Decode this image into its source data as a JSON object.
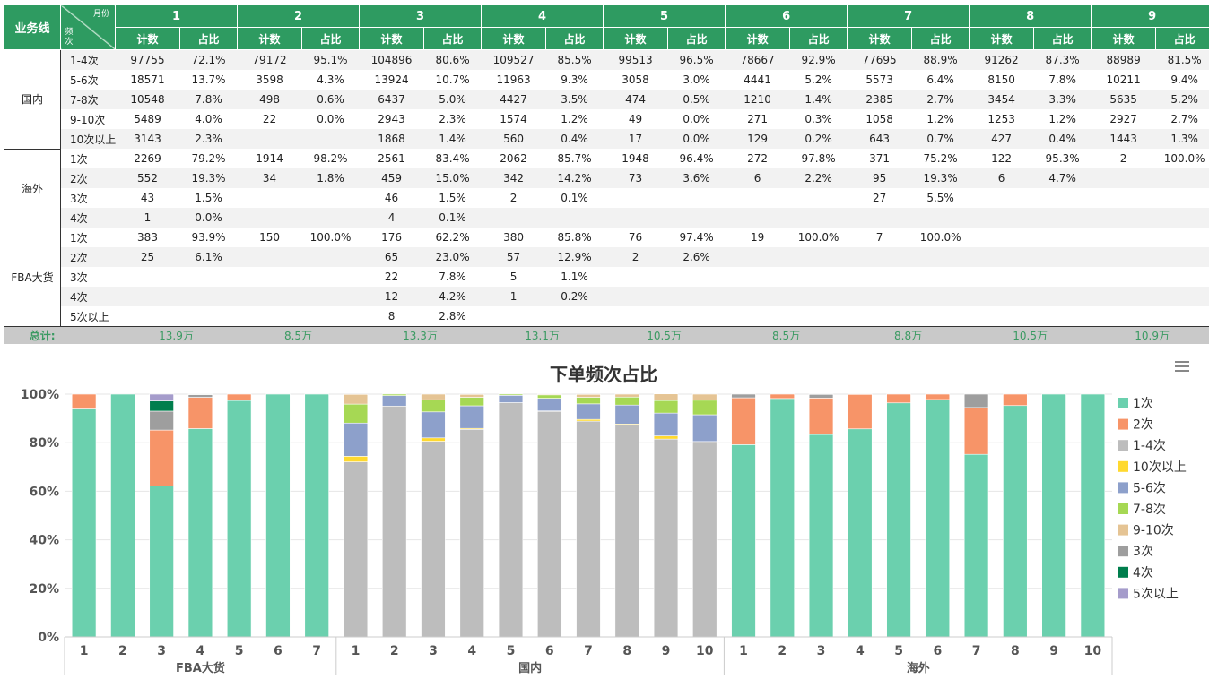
{
  "table": {
    "header": {
      "business": "业务线",
      "month": "月份",
      "freq": "频次",
      "count": "计数",
      "pct": "占比"
    },
    "months": [
      "1",
      "2",
      "3",
      "4",
      "5",
      "6",
      "7",
      "8",
      "9"
    ],
    "groups": [
      {
        "name": "国内",
        "rows": [
          {
            "freq": "1-4次",
            "cells": [
              "97755",
              "72.1%",
              "79172",
              "95.1%",
              "104896",
              "80.6%",
              "109527",
              "85.5%",
              "99513",
              "96.5%",
              "78667",
              "92.9%",
              "77695",
              "88.9%",
              "91262",
              "87.3%",
              "88989",
              "81.5%"
            ]
          },
          {
            "freq": "5-6次",
            "cells": [
              "18571",
              "13.7%",
              "3598",
              "4.3%",
              "13924",
              "10.7%",
              "11963",
              "9.3%",
              "3058",
              "3.0%",
              "4441",
              "5.2%",
              "5573",
              "6.4%",
              "8150",
              "7.8%",
              "10211",
              "9.4%"
            ]
          },
          {
            "freq": "7-8次",
            "cells": [
              "10548",
              "7.8%",
              "498",
              "0.6%",
              "6437",
              "5.0%",
              "4427",
              "3.5%",
              "474",
              "0.5%",
              "1210",
              "1.4%",
              "2385",
              "2.7%",
              "3454",
              "3.3%",
              "5635",
              "5.2%"
            ]
          },
          {
            "freq": "9-10次",
            "cells": [
              "5489",
              "4.0%",
              "22",
              "0.0%",
              "2943",
              "2.3%",
              "1574",
              "1.2%",
              "49",
              "0.0%",
              "271",
              "0.3%",
              "1058",
              "1.2%",
              "1253",
              "1.2%",
              "2927",
              "2.7%"
            ]
          },
          {
            "freq": "10次以上",
            "cells": [
              "3143",
              "2.3%",
              "",
              "",
              "1868",
              "1.4%",
              "560",
              "0.4%",
              "17",
              "0.0%",
              "129",
              "0.2%",
              "643",
              "0.7%",
              "427",
              "0.4%",
              "1443",
              "1.3%"
            ]
          }
        ]
      },
      {
        "name": "海外",
        "rows": [
          {
            "freq": "1次",
            "cells": [
              "2269",
              "79.2%",
              "1914",
              "98.2%",
              "2561",
              "83.4%",
              "2062",
              "85.7%",
              "1948",
              "96.4%",
              "272",
              "97.8%",
              "371",
              "75.2%",
              "122",
              "95.3%",
              "2",
              "100.0%"
            ]
          },
          {
            "freq": "2次",
            "cells": [
              "552",
              "19.3%",
              "34",
              "1.8%",
              "459",
              "15.0%",
              "342",
              "14.2%",
              "73",
              "3.6%",
              "6",
              "2.2%",
              "95",
              "19.3%",
              "6",
              "4.7%",
              "",
              ""
            ]
          },
          {
            "freq": "3次",
            "cells": [
              "43",
              "1.5%",
              "",
              "",
              "46",
              "1.5%",
              "2",
              "0.1%",
              "",
              "",
              "",
              "",
              "27",
              "5.5%",
              "",
              "",
              "",
              ""
            ]
          },
          {
            "freq": "4次",
            "cells": [
              "1",
              "0.0%",
              "",
              "",
              "4",
              "0.1%",
              "",
              "",
              "",
              "",
              "",
              "",
              "",
              "",
              "",
              "",
              "",
              ""
            ]
          }
        ]
      },
      {
        "name": "FBA大货",
        "rows": [
          {
            "freq": "1次",
            "cells": [
              "383",
              "93.9%",
              "150",
              "100.0%",
              "176",
              "62.2%",
              "380",
              "85.8%",
              "76",
              "97.4%",
              "19",
              "100.0%",
              "7",
              "100.0%",
              "",
              "",
              "",
              ""
            ]
          },
          {
            "freq": "2次",
            "cells": [
              "25",
              "6.1%",
              "",
              "",
              "65",
              "23.0%",
              "57",
              "12.9%",
              "2",
              "2.6%",
              "",
              "",
              "",
              "",
              "",
              "",
              "",
              ""
            ]
          },
          {
            "freq": "3次",
            "cells": [
              "",
              "",
              "",
              "",
              "22",
              "7.8%",
              "5",
              "1.1%",
              "",
              "",
              "",
              "",
              "",
              "",
              "",
              "",
              "",
              ""
            ]
          },
          {
            "freq": "4次",
            "cells": [
              "",
              "",
              "",
              "",
              "12",
              "4.2%",
              "1",
              "0.2%",
              "",
              "",
              "",
              "",
              "",
              "",
              "",
              "",
              "",
              ""
            ]
          },
          {
            "freq": "5次以上",
            "cells": [
              "",
              "",
              "",
              "",
              "8",
              "2.8%",
              "",
              "",
              "",
              "",
              "",
              "",
              "",
              "",
              "",
              "",
              "",
              ""
            ]
          }
        ]
      }
    ],
    "total_label": "总计:",
    "totals": [
      "13.9万",
      "8.5万",
      "13.3万",
      "13.1万",
      "10.5万",
      "8.5万",
      "8.8万",
      "10.5万",
      "10.9万"
    ]
  },
  "chart_data": {
    "type": "bar",
    "stacked": true,
    "percent_stacked": true,
    "title": "下单频次占比",
    "menu_icon": "hamburger-menu-icon",
    "ylim": [
      0,
      100
    ],
    "yticks": [
      "0%",
      "20%",
      "40%",
      "60%",
      "80%",
      "100%"
    ],
    "groups": [
      {
        "name": "FBA大货",
        "categories": [
          "1",
          "2",
          "3",
          "4",
          "5",
          "6",
          "7"
        ]
      },
      {
        "name": "国内",
        "categories": [
          "1",
          "2",
          "3",
          "4",
          "5",
          "6",
          "7",
          "8",
          "9",
          "10"
        ]
      },
      {
        "name": "海外",
        "categories": [
          "1",
          "2",
          "3",
          "4",
          "5",
          "6",
          "7",
          "8",
          "9",
          "10"
        ]
      }
    ],
    "series": [
      {
        "name": "1次",
        "color": "#6bd0ae",
        "values": [
          93.9,
          100,
          62.2,
          85.8,
          97.4,
          100,
          100,
          0,
          0,
          0,
          0,
          0,
          0,
          0,
          0,
          0,
          0,
          79.2,
          98.2,
          83.4,
          85.7,
          96.4,
          97.8,
          75.2,
          95.3,
          100,
          100
        ]
      },
      {
        "name": "2次",
        "color": "#f79468",
        "values": [
          6.1,
          0,
          23.0,
          12.9,
          2.6,
          0,
          0,
          0,
          0,
          0,
          0,
          0,
          0,
          0,
          0,
          0,
          0,
          19.3,
          1.8,
          15.0,
          14.2,
          3.6,
          2.2,
          19.3,
          4.7,
          0,
          0
        ]
      },
      {
        "name": "1-4次",
        "color": "#bdbdbd",
        "values": [
          0,
          0,
          0,
          0,
          0,
          0,
          0,
          72.1,
          95.1,
          80.6,
          85.5,
          96.5,
          92.9,
          88.9,
          87.3,
          81.5,
          80.5,
          0,
          0,
          0,
          0,
          0,
          0,
          0,
          0,
          0,
          0
        ]
      },
      {
        "name": "10次以上",
        "color": "#ffd92f",
        "values": [
          0,
          0,
          0,
          0,
          0,
          0,
          0,
          2.3,
          0,
          1.4,
          0.4,
          0,
          0.2,
          0.7,
          0.4,
          1.3,
          0,
          0,
          0,
          0,
          0,
          0,
          0,
          0,
          0,
          0,
          0
        ]
      },
      {
        "name": "5-6次",
        "color": "#8da0cb",
        "values": [
          0,
          0,
          0,
          0,
          0,
          0,
          0,
          13.7,
          4.3,
          10.7,
          9.3,
          3.0,
          5.2,
          6.4,
          7.8,
          9.4,
          11.0,
          0,
          0,
          0,
          0,
          0,
          0,
          0,
          0,
          0,
          0
        ]
      },
      {
        "name": "7-8次",
        "color": "#a6d854",
        "values": [
          0,
          0,
          0,
          0,
          0,
          0,
          0,
          7.8,
          0.6,
          5.0,
          3.5,
          0.5,
          1.4,
          2.7,
          3.3,
          5.2,
          6.0,
          0,
          0,
          0,
          0,
          0,
          0,
          0,
          0,
          0,
          0
        ]
      },
      {
        "name": "9-10次",
        "color": "#e5c494",
        "values": [
          0,
          0,
          0,
          0,
          0,
          0,
          0,
          4.0,
          0,
          2.3,
          1.2,
          0,
          0.3,
          1.2,
          1.2,
          2.7,
          2.5,
          0,
          0,
          0,
          0,
          0,
          0,
          0,
          0,
          0,
          0
        ]
      },
      {
        "name": "3次",
        "color": "#9e9e9e",
        "values": [
          0,
          0,
          7.8,
          1.1,
          0,
          0,
          0,
          0,
          0,
          0,
          0,
          0,
          0,
          0,
          0,
          0,
          0,
          1.5,
          0,
          1.5,
          0.1,
          0,
          0,
          5.5,
          0,
          0,
          0
        ]
      },
      {
        "name": "4次",
        "color": "#007e4d",
        "values": [
          0,
          0,
          4.2,
          0.2,
          0,
          0,
          0,
          0,
          0,
          0,
          0,
          0,
          0,
          0,
          0,
          0,
          0,
          0,
          0,
          0.1,
          0,
          0,
          0,
          0,
          0,
          0,
          0
        ]
      },
      {
        "name": "5次以上",
        "color": "#a59ccb",
        "values": [
          0,
          0,
          2.8,
          0,
          0,
          0,
          0,
          0,
          0,
          0,
          0,
          0,
          0,
          0,
          0,
          0,
          0,
          0,
          0,
          0,
          0,
          0,
          0,
          0,
          0,
          0,
          0
        ]
      }
    ],
    "legend_position": "right"
  }
}
